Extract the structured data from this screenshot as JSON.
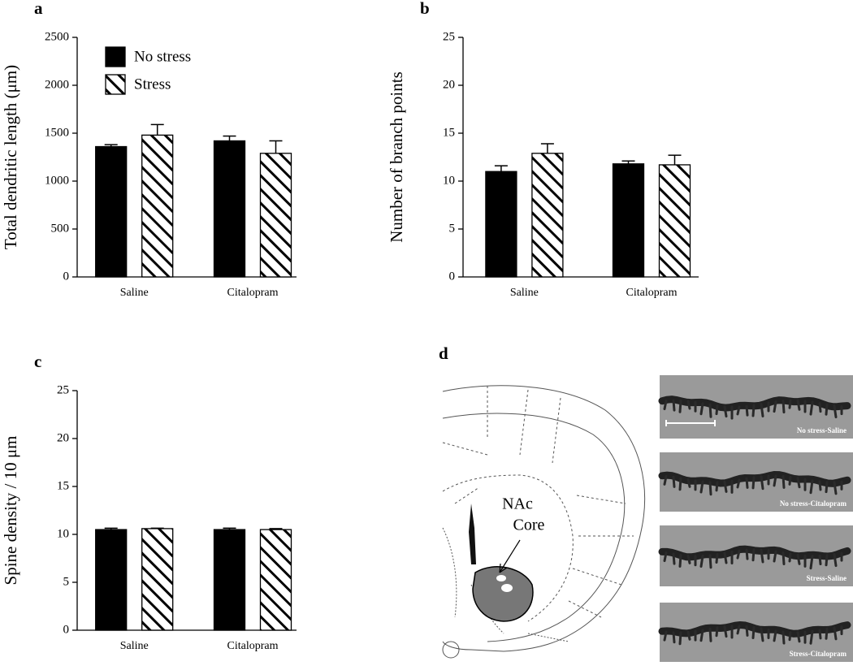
{
  "chart_data": [
    {
      "panel": "a",
      "type": "bar",
      "ylabel": "Total dendritic length (μm)",
      "categories": [
        "Saline",
        "Citalopram"
      ],
      "series": [
        {
          "name": "No stress",
          "color": "#000000",
          "pattern": "solid",
          "values": [
            1360,
            1420
          ],
          "errors": [
            20,
            50
          ]
        },
        {
          "name": "Stress",
          "color": "#000000",
          "pattern": "hatch",
          "values": [
            1480,
            1290
          ],
          "errors": [
            110,
            130
          ]
        }
      ],
      "ylim": [
        0,
        2500
      ],
      "yticks": [
        0,
        500,
        1000,
        1500,
        2000,
        2500
      ],
      "legend": "upper left"
    },
    {
      "panel": "b",
      "type": "bar",
      "ylabel": "Number of branch points",
      "categories": [
        "Saline",
        "Citalopram"
      ],
      "series": [
        {
          "color": "#000000",
          "pattern": "solid",
          "values": [
            11.0,
            11.8
          ],
          "errors": [
            0.6,
            0.3
          ]
        },
        {
          "color": "#000000",
          "pattern": "hatch",
          "values": [
            12.9,
            11.7
          ],
          "errors": [
            1.0,
            1.0
          ]
        }
      ],
      "ylim": [
        0,
        25
      ],
      "yticks": [
        0,
        5,
        10,
        15,
        20,
        25
      ]
    },
    {
      "panel": "c",
      "type": "bar",
      "ylabel": "Spine density / 10 μm",
      "categories": [
        "Saline",
        "Citalopram"
      ],
      "series": [
        {
          "color": "#000000",
          "pattern": "solid",
          "values": [
            10.5,
            10.5
          ],
          "errors": [
            0.15,
            0.15
          ]
        },
        {
          "color": "#000000",
          "pattern": "hatch",
          "values": [
            10.6,
            10.5
          ],
          "errors": [
            0.05,
            0.1
          ]
        }
      ],
      "ylim": [
        0,
        25
      ],
      "yticks": [
        0,
        5,
        10,
        15,
        20,
        25
      ]
    }
  ],
  "panel_d": {
    "label": "d",
    "region_label": [
      "NAc",
      "Core"
    ],
    "images": [
      "No stress-Saline",
      "No stress-Citalopram",
      "Stress-Saline",
      "Stress-Citalopram"
    ]
  }
}
